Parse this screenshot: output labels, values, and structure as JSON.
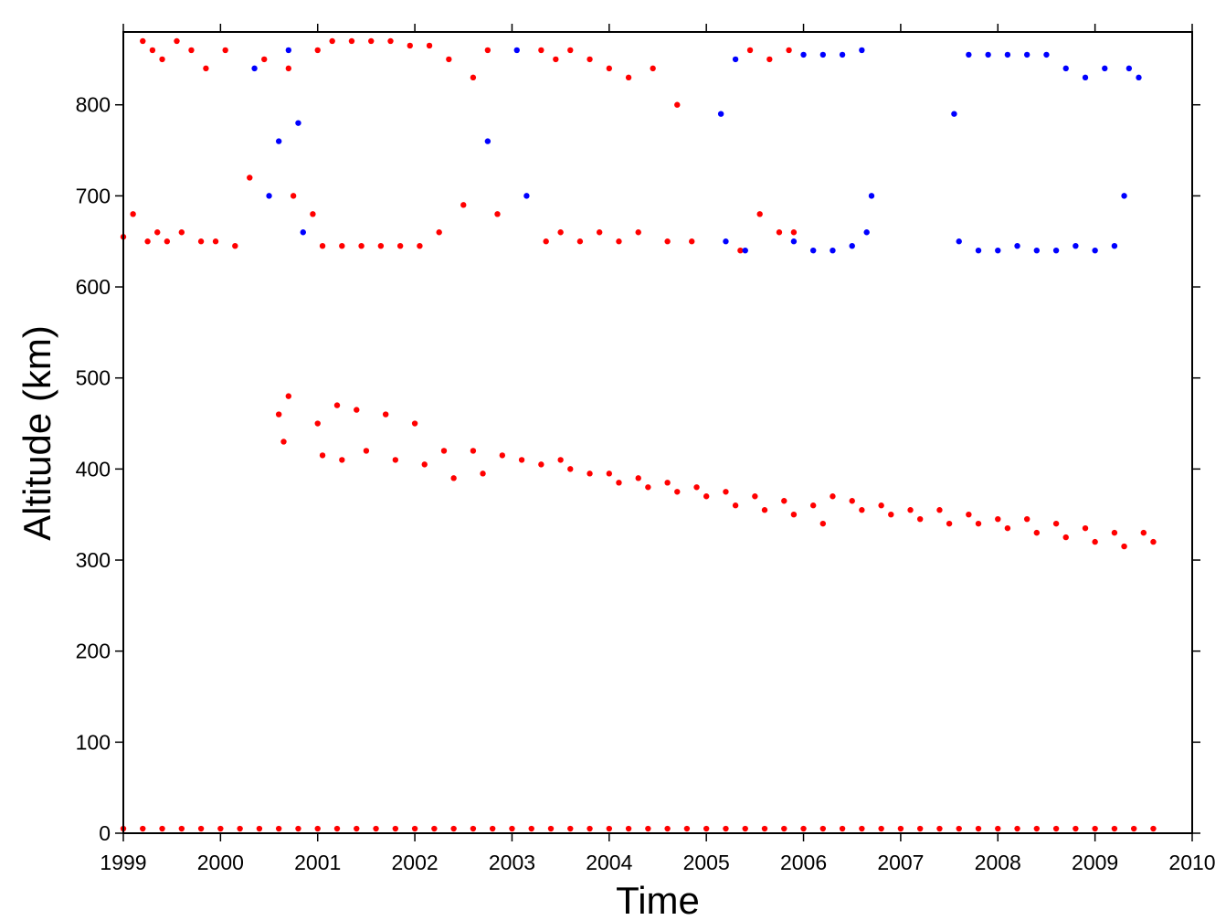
{
  "chart_data": {
    "type": "scatter",
    "xlabel": "Time",
    "ylabel": "Altitude (km)",
    "xlim": [
      1999,
      2010
    ],
    "xticks": [
      1999,
      2000,
      2001,
      2002,
      2003,
      2004,
      2005,
      2006,
      2007,
      2008,
      2009,
      2010
    ],
    "ylim": [
      0,
      880
    ],
    "yticks": [
      0,
      100,
      200,
      300,
      400,
      500,
      600,
      700,
      800
    ],
    "series": [
      {
        "color": "#ff0000",
        "x": [
          1999.0,
          1999.1,
          1999.2,
          1999.25,
          1999.3,
          1999.35,
          1999.4,
          1999.45,
          1999.55,
          1999.6,
          1999.7,
          1999.8,
          1999.85,
          1999.95,
          2000.05,
          2000.15,
          2000.3,
          2000.45,
          2000.7,
          2000.75,
          2000.95,
          2001.0,
          2001.05,
          2001.15,
          2001.25,
          2001.35,
          2001.45,
          2001.55,
          2001.65,
          2001.75,
          2001.85,
          2001.95,
          2002.05,
          2002.15,
          2002.25,
          2002.35,
          2002.5,
          2002.6,
          2002.75,
          2002.85,
          2003.3,
          2003.35,
          2003.45,
          2003.5,
          2003.6,
          2003.7,
          2003.8,
          2003.9,
          2004.0,
          2004.1,
          2004.2,
          2004.3,
          2004.45,
          2004.6,
          2004.7,
          2004.85,
          2005.35,
          2005.45,
          2005.55,
          2005.65,
          2005.75,
          2005.85,
          2005.9
        ],
        "values": [
          655,
          680,
          870,
          650,
          860,
          660,
          850,
          650,
          870,
          660,
          860,
          650,
          840,
          650,
          860,
          645,
          720,
          850,
          840,
          700,
          680,
          860,
          645,
          870,
          645,
          870,
          645,
          870,
          645,
          870,
          645,
          865,
          645,
          865,
          660,
          850,
          690,
          830,
          860,
          680,
          860,
          650,
          850,
          660,
          860,
          650,
          850,
          660,
          840,
          650,
          830,
          660,
          840,
          650,
          800,
          650,
          640,
          860,
          680,
          850,
          660,
          860,
          660
        ]
      },
      {
        "color": "#0000ff",
        "x": [
          2000.35,
          2000.5,
          2000.6,
          2000.7,
          2000.8,
          2000.85,
          2002.75,
          2003.05,
          2003.15,
          2005.15,
          2005.2,
          2005.3,
          2005.4,
          2005.9,
          2006.0,
          2006.1,
          2006.2,
          2006.3,
          2006.4,
          2006.5,
          2006.6,
          2006.65,
          2006.7,
          2007.55,
          2007.6,
          2007.7,
          2007.8,
          2007.9,
          2008.0,
          2008.1,
          2008.2,
          2008.3,
          2008.4,
          2008.5,
          2008.6,
          2008.7,
          2008.8,
          2008.9,
          2009.0,
          2009.1,
          2009.2,
          2009.3,
          2009.35,
          2009.45
        ],
        "values": [
          840,
          700,
          760,
          860,
          780,
          660,
          760,
          860,
          700,
          790,
          650,
          850,
          640,
          650,
          855,
          640,
          855,
          640,
          855,
          645,
          860,
          660,
          700,
          790,
          650,
          855,
          640,
          855,
          640,
          855,
          645,
          855,
          640,
          855,
          640,
          840,
          645,
          830,
          640,
          840,
          645,
          700,
          840,
          830
        ]
      },
      {
        "color": "#ff0000",
        "x": [
          2000.6,
          2000.65,
          2000.7,
          2001.0,
          2001.05,
          2001.2,
          2001.25,
          2001.4,
          2001.5,
          2001.7,
          2001.8,
          2002.0,
          2002.1,
          2002.3,
          2002.4,
          2002.6,
          2002.7,
          2002.9,
          2003.1,
          2003.3,
          2003.5,
          2003.6,
          2003.8,
          2004.0,
          2004.1,
          2004.3,
          2004.4,
          2004.6,
          2004.7,
          2004.9,
          2005.0,
          2005.2,
          2005.3,
          2005.5,
          2005.6,
          2005.8,
          2005.9,
          2006.1,
          2006.2,
          2006.3,
          2006.5,
          2006.6,
          2006.8,
          2006.9,
          2007.1,
          2007.2,
          2007.4,
          2007.5,
          2007.7,
          2007.8,
          2008.0,
          2008.1,
          2008.3,
          2008.4,
          2008.6,
          2008.7,
          2008.9,
          2009.0,
          2009.2,
          2009.3,
          2009.5,
          2009.6
        ],
        "values": [
          460,
          430,
          480,
          450,
          415,
          470,
          410,
          465,
          420,
          460,
          410,
          450,
          405,
          420,
          390,
          420,
          395,
          415,
          410,
          405,
          410,
          400,
          395,
          395,
          385,
          390,
          380,
          385,
          375,
          380,
          370,
          375,
          360,
          370,
          355,
          365,
          350,
          360,
          340,
          370,
          365,
          355,
          360,
          350,
          355,
          345,
          355,
          340,
          350,
          340,
          345,
          335,
          345,
          330,
          340,
          325,
          335,
          320,
          330,
          315,
          330,
          320
        ]
      },
      {
        "color": "#ff0000",
        "x": [
          1999.0,
          1999.2,
          1999.4,
          1999.6,
          1999.8,
          2000.0,
          2000.2,
          2000.4,
          2000.6,
          2000.8,
          2001.0,
          2001.2,
          2001.4,
          2001.6,
          2001.8,
          2002.0,
          2002.2,
          2002.4,
          2002.6,
          2002.8,
          2003.0,
          2003.2,
          2003.4,
          2003.6,
          2003.8,
          2004.0,
          2004.2,
          2004.4,
          2004.6,
          2004.8,
          2005.0,
          2005.2,
          2005.4,
          2005.6,
          2005.8,
          2006.0,
          2006.2,
          2006.4,
          2006.6,
          2006.8,
          2007.0,
          2007.2,
          2007.4,
          2007.6,
          2007.8,
          2008.0,
          2008.2,
          2008.4,
          2008.6,
          2008.8,
          2009.0,
          2009.2,
          2009.4,
          2009.6
        ],
        "values": [
          5,
          5,
          5,
          5,
          5,
          5,
          5,
          5,
          5,
          5,
          5,
          5,
          5,
          5,
          5,
          5,
          5,
          5,
          5,
          5,
          5,
          5,
          5,
          5,
          5,
          5,
          5,
          5,
          5,
          5,
          5,
          5,
          5,
          5,
          5,
          5,
          5,
          5,
          5,
          5,
          5,
          5,
          5,
          5,
          5,
          5,
          5,
          5,
          5,
          5,
          5,
          5,
          5,
          5
        ]
      }
    ]
  }
}
